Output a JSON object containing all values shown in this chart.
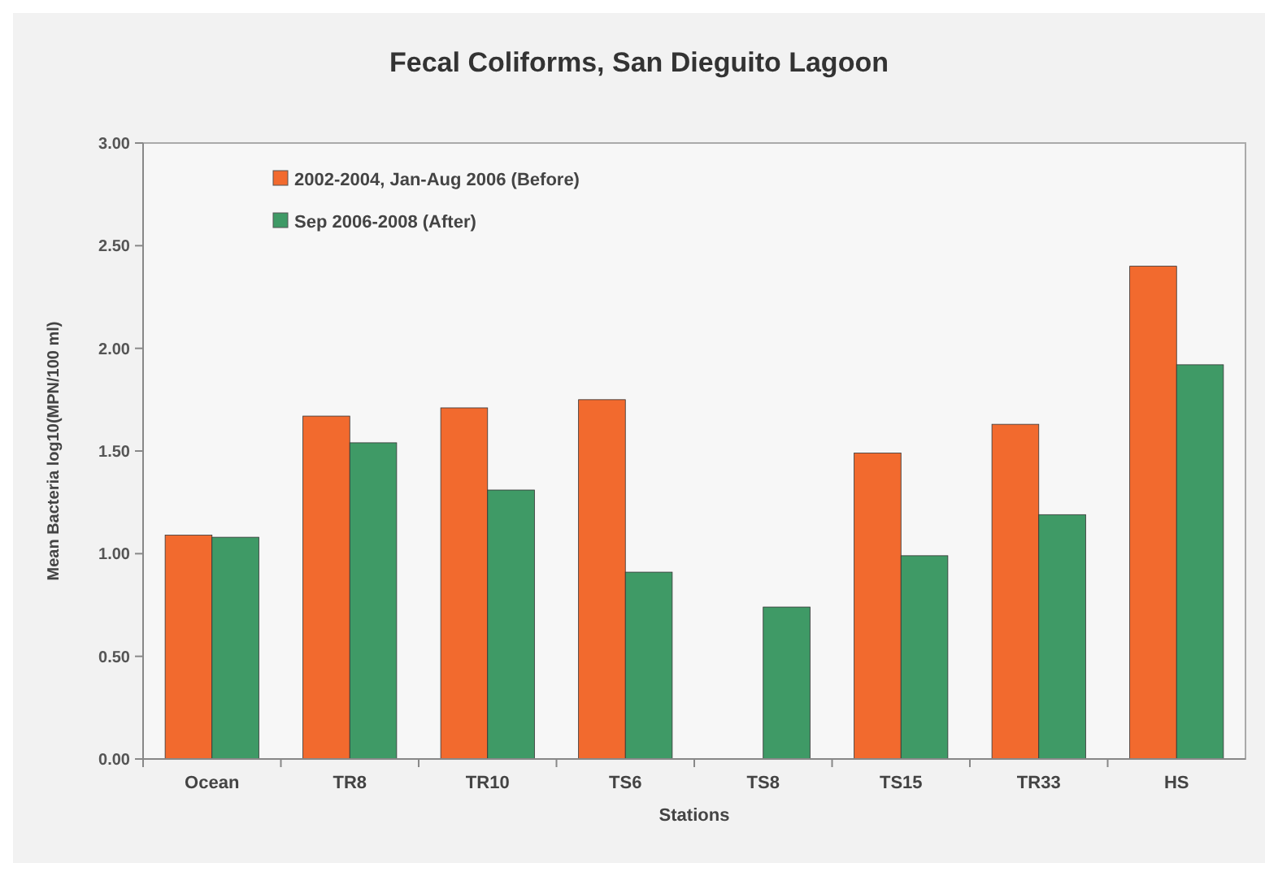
{
  "chart_data": {
    "type": "bar",
    "title": "Fecal Coliforms, San Dieguito Lagoon",
    "xlabel": "Stations",
    "ylabel": "Mean Bacteria log10(MPN/100 ml)",
    "categories": [
      "Ocean",
      "TR8",
      "TR10",
      "TS6",
      "TS8",
      "TS15",
      "TR33",
      "HS"
    ],
    "series": [
      {
        "name": "2002-2004, Jan-Aug 2006 (Before)",
        "color": "#f26a2e",
        "values": [
          1.09,
          1.67,
          1.71,
          1.75,
          null,
          1.49,
          1.63,
          2.4
        ]
      },
      {
        "name": "Sep 2006-2008 (After)",
        "color": "#3f9a66",
        "values": [
          1.08,
          1.54,
          1.31,
          0.91,
          0.74,
          0.99,
          1.19,
          1.92
        ]
      }
    ],
    "ylim": [
      0,
      3
    ],
    "yticks": [
      {
        "value": 0,
        "label": "0.00"
      },
      {
        "value": 0.5,
        "label": "0.50"
      },
      {
        "value": 1,
        "label": "1.00"
      },
      {
        "value": 1.5,
        "label": "1.50"
      },
      {
        "value": 2,
        "label": "2.00"
      },
      {
        "value": 2.5,
        "label": "2.50"
      },
      {
        "value": 3,
        "label": "3.00"
      }
    ],
    "legend": "top left"
  }
}
